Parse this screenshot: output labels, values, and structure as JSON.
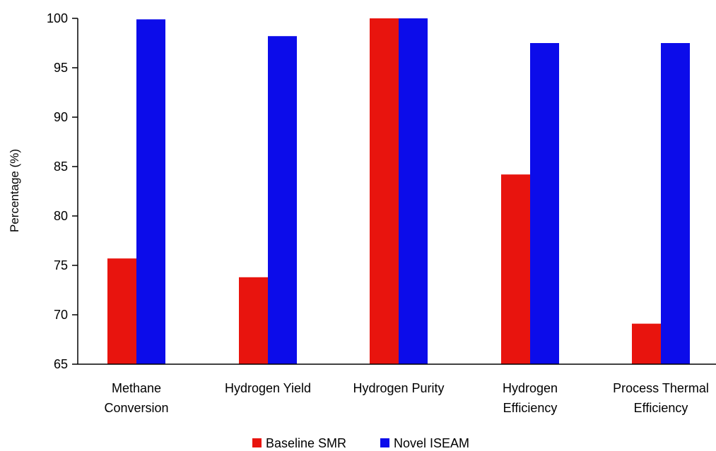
{
  "chart_data": {
    "type": "bar",
    "title": "",
    "xlabel": "",
    "ylabel": "Percentage (%)",
    "ylim": [
      65,
      100
    ],
    "yticks": [
      65,
      70,
      75,
      80,
      85,
      90,
      95,
      100
    ],
    "grid": false,
    "legend_position": "bottom-center",
    "categories": [
      [
        "Methane",
        "Conversion"
      ],
      [
        "Hydrogen Yield"
      ],
      [
        "Hydrogen Purity"
      ],
      [
        "Hydrogen",
        "Efficiency"
      ],
      [
        "Process Thermal",
        "Efficiency"
      ]
    ],
    "series": [
      {
        "name": "Baseline SMR",
        "color": "#e8140e",
        "values": [
          75.7,
          73.8,
          100,
          84.2,
          69.1
        ]
      },
      {
        "name": "Novel ISEAM",
        "color": "#0c0cea",
        "values": [
          99.9,
          98.2,
          100,
          97.5,
          97.5
        ]
      }
    ]
  }
}
